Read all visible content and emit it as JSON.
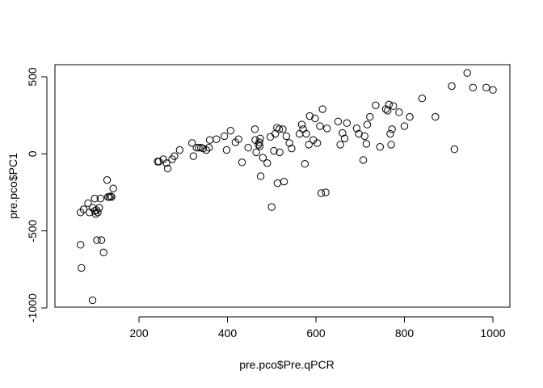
{
  "chart_data": {
    "type": "scatter",
    "title": "",
    "xlabel": "pre.pco$Pre.qPCR",
    "ylabel": "pre.pco$PC1",
    "xlim": [
      50,
      1010
    ],
    "ylim": [
      -1000,
      550
    ],
    "x_ticks": [
      200,
      400,
      600,
      800,
      1000
    ],
    "y_ticks": [
      -1000,
      -500,
      0,
      500
    ],
    "x_tick_labels": [
      "200",
      "400",
      "600",
      "800",
      "1000"
    ],
    "y_tick_labels": [
      "-1000",
      "-500",
      "0",
      "500"
    ],
    "grid": false,
    "legend": "none",
    "marker": "open-circle",
    "points": [
      [
        68,
        -380
      ],
      [
        75,
        -360
      ],
      [
        85,
        -320
      ],
      [
        88,
        -380
      ],
      [
        95,
        -350
      ],
      [
        100,
        -290
      ],
      [
        100,
        -370
      ],
      [
        102,
        -390
      ],
      [
        104,
        -365
      ],
      [
        107,
        -380
      ],
      [
        110,
        -350
      ],
      [
        113,
        -290
      ],
      [
        68,
        -590
      ],
      [
        70,
        -740
      ],
      [
        95,
        -950
      ],
      [
        105,
        -560
      ],
      [
        115,
        -560
      ],
      [
        120,
        -640
      ],
      [
        128,
        -170
      ],
      [
        130,
        -280
      ],
      [
        133,
        -280
      ],
      [
        136,
        -275
      ],
      [
        138,
        -280
      ],
      [
        142,
        -225
      ],
      [
        242,
        -50
      ],
      [
        245,
        -50
      ],
      [
        255,
        -35
      ],
      [
        262,
        -60
      ],
      [
        265,
        -95
      ],
      [
        275,
        -35
      ],
      [
        280,
        -15
      ],
      [
        292,
        25
      ],
      [
        320,
        70
      ],
      [
        323,
        -15
      ],
      [
        330,
        40
      ],
      [
        335,
        40
      ],
      [
        340,
        40
      ],
      [
        345,
        35
      ],
      [
        352,
        25
      ],
      [
        358,
        40
      ],
      [
        360,
        90
      ],
      [
        375,
        95
      ],
      [
        393,
        115
      ],
      [
        398,
        25
      ],
      [
        407,
        150
      ],
      [
        418,
        75
      ],
      [
        425,
        95
      ],
      [
        433,
        -55
      ],
      [
        447,
        40
      ],
      [
        462,
        160
      ],
      [
        463,
        90
      ],
      [
        465,
        10
      ],
      [
        470,
        60
      ],
      [
        472,
        75
      ],
      [
        473,
        50
      ],
      [
        474,
        100
      ],
      [
        475,
        -145
      ],
      [
        480,
        -25
      ],
      [
        490,
        -60
      ],
      [
        497,
        110
      ],
      [
        500,
        -345
      ],
      [
        505,
        20
      ],
      [
        508,
        130
      ],
      [
        512,
        170
      ],
      [
        513,
        -190
      ],
      [
        517,
        160
      ],
      [
        518,
        10
      ],
      [
        525,
        160
      ],
      [
        528,
        -180
      ],
      [
        533,
        115
      ],
      [
        540,
        70
      ],
      [
        545,
        35
      ],
      [
        563,
        130
      ],
      [
        568,
        190
      ],
      [
        571,
        160
      ],
      [
        575,
        -65
      ],
      [
        578,
        130
      ],
      [
        584,
        60
      ],
      [
        586,
        245
      ],
      [
        594,
        90
      ],
      [
        598,
        230
      ],
      [
        603,
        70
      ],
      [
        609,
        180
      ],
      [
        612,
        -255
      ],
      [
        615,
        290
      ],
      [
        622,
        -250
      ],
      [
        625,
        165
      ],
      [
        650,
        210
      ],
      [
        655,
        60
      ],
      [
        660,
        135
      ],
      [
        665,
        100
      ],
      [
        670,
        200
      ],
      [
        692,
        165
      ],
      [
        697,
        130
      ],
      [
        707,
        -40
      ],
      [
        710,
        115
      ],
      [
        714,
        65
      ],
      [
        716,
        190
      ],
      [
        722,
        240
      ],
      [
        735,
        315
      ],
      [
        745,
        45
      ],
      [
        758,
        290
      ],
      [
        762,
        280
      ],
      [
        765,
        320
      ],
      [
        768,
        130
      ],
      [
        770,
        60
      ],
      [
        772,
        160
      ],
      [
        775,
        310
      ],
      [
        788,
        270
      ],
      [
        800,
        180
      ],
      [
        812,
        240
      ],
      [
        840,
        360
      ],
      [
        870,
        240
      ],
      [
        907,
        440
      ],
      [
        913,
        30
      ],
      [
        942,
        525
      ],
      [
        955,
        430
      ],
      [
        985,
        430
      ],
      [
        1000,
        415
      ]
    ]
  }
}
